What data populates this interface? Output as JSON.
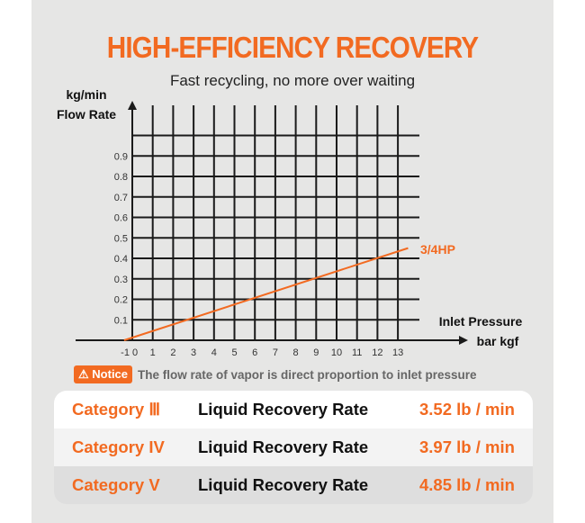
{
  "title": "HIGH-EFFICIENCY RECOVERY",
  "subtitle": "Fast recycling, no more over waiting",
  "chart_data": {
    "type": "line",
    "ylabel_unit": "kg/min",
    "ylabel": "Flow Rate",
    "xlabel": "Inlet Pressure",
    "xlabel_unit": "bar kgf",
    "x_ticks": [
      "-1",
      "0",
      "1",
      "2",
      "3",
      "4",
      "5",
      "6",
      "7",
      "8",
      "9",
      "10",
      "11",
      "12",
      "13"
    ],
    "y_ticks": [
      "0.1",
      "0.2",
      "0.3",
      "0.4",
      "0.5",
      "0.6",
      "0.7",
      "0.8",
      "0.9"
    ],
    "xlim": [
      -1,
      13
    ],
    "ylim": [
      0,
      1.0
    ],
    "grid": true,
    "series": [
      {
        "name": "3/4HP",
        "color": "#f26a21",
        "points": [
          [
            -0.4,
            0
          ],
          [
            13.5,
            0.45
          ]
        ]
      }
    ]
  },
  "notice": {
    "badge": "Notice",
    "icon": "warning-icon",
    "text": "The flow rate of vapor is direct proportion to inlet pressure"
  },
  "rates": [
    {
      "category": "Category Ⅲ",
      "label": "Liquid Recovery Rate",
      "value": "3.52 lb / min"
    },
    {
      "category": "Category IV",
      "label": "Liquid Recovery Rate",
      "value": "3.97 lb / min"
    },
    {
      "category": "Category V",
      "label": "Liquid Recovery Rate",
      "value": "4.85 lb / min"
    }
  ]
}
